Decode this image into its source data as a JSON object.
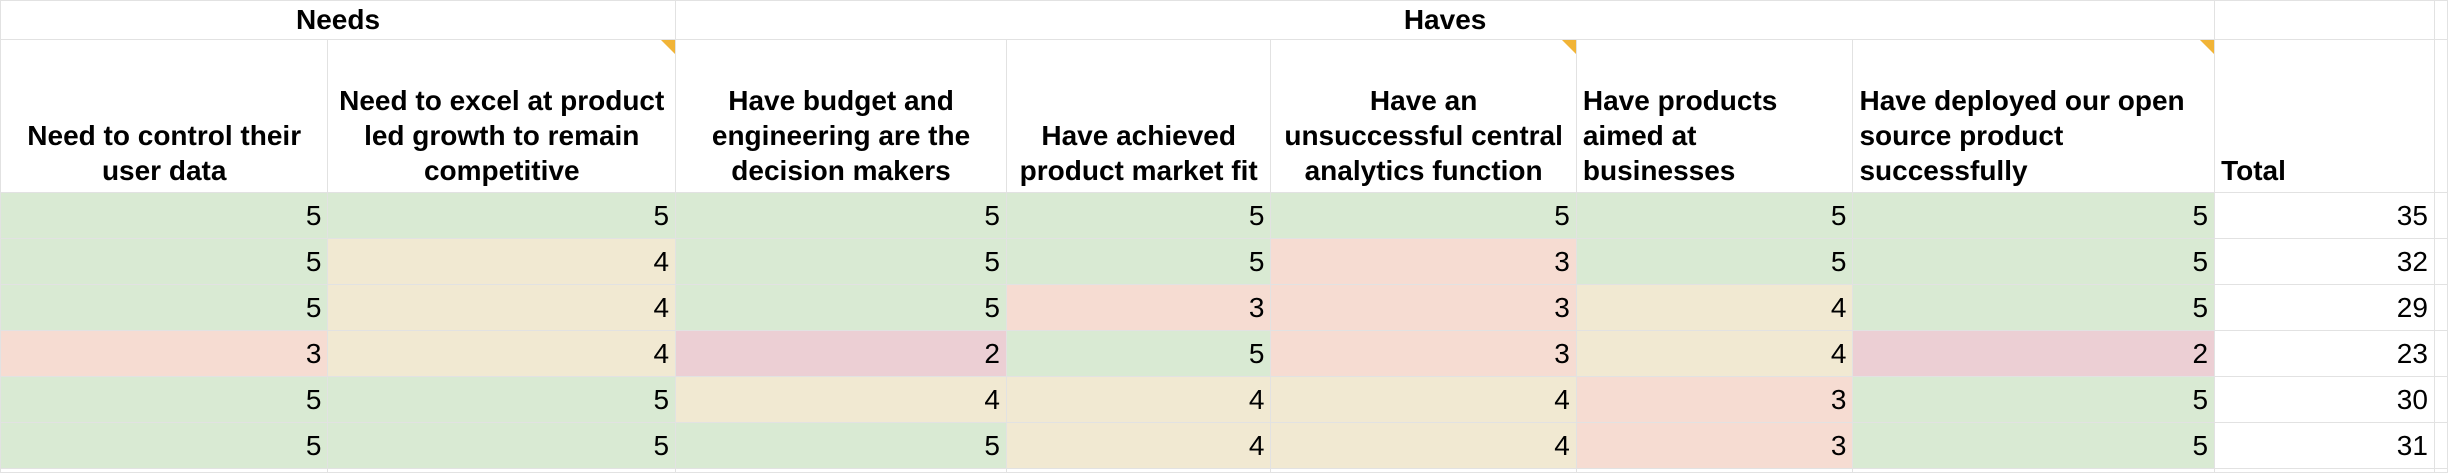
{
  "groups": {
    "needs": "Needs",
    "haves": "Haves"
  },
  "headers": {
    "h1": "Need to control their user data",
    "h2": "Need to excel at product led growth to remain competitive",
    "h3": "Have budget and engineering are the decision makers",
    "h4": "Have achieved product market fit",
    "h5": "Have an unsuccessful central analytics function",
    "h6": "Have products aimed at businesses",
    "h7": "Have deployed our open source product successfully",
    "total": "Total"
  },
  "rows": [
    {
      "c1": "5",
      "c2": "5",
      "c3": "5",
      "c4": "5",
      "c5": "5",
      "c6": "5",
      "c7": "5",
      "total": "35"
    },
    {
      "c1": "5",
      "c2": "4",
      "c3": "5",
      "c4": "5",
      "c5": "3",
      "c6": "5",
      "c7": "5",
      "total": "32"
    },
    {
      "c1": "5",
      "c2": "4",
      "c3": "5",
      "c4": "3",
      "c5": "3",
      "c6": "4",
      "c7": "5",
      "total": "29"
    },
    {
      "c1": "3",
      "c2": "4",
      "c3": "2",
      "c4": "5",
      "c5": "3",
      "c6": "4",
      "c7": "2",
      "total": "23"
    },
    {
      "c1": "5",
      "c2": "5",
      "c3": "4",
      "c4": "4",
      "c5": "4",
      "c6": "3",
      "c7": "5",
      "total": "30"
    },
    {
      "c1": "5",
      "c2": "5",
      "c3": "5",
      "c4": "4",
      "c5": "4",
      "c6": "3",
      "c7": "5",
      "total": "31"
    }
  ],
  "colors": {
    "green": "#d9ead3",
    "yellow": "#f1e9d2",
    "orange": "#f6dcd2",
    "red": "#eccfd4",
    "note_flag": "#f1b437",
    "gridline": "#e2e2e2"
  }
}
